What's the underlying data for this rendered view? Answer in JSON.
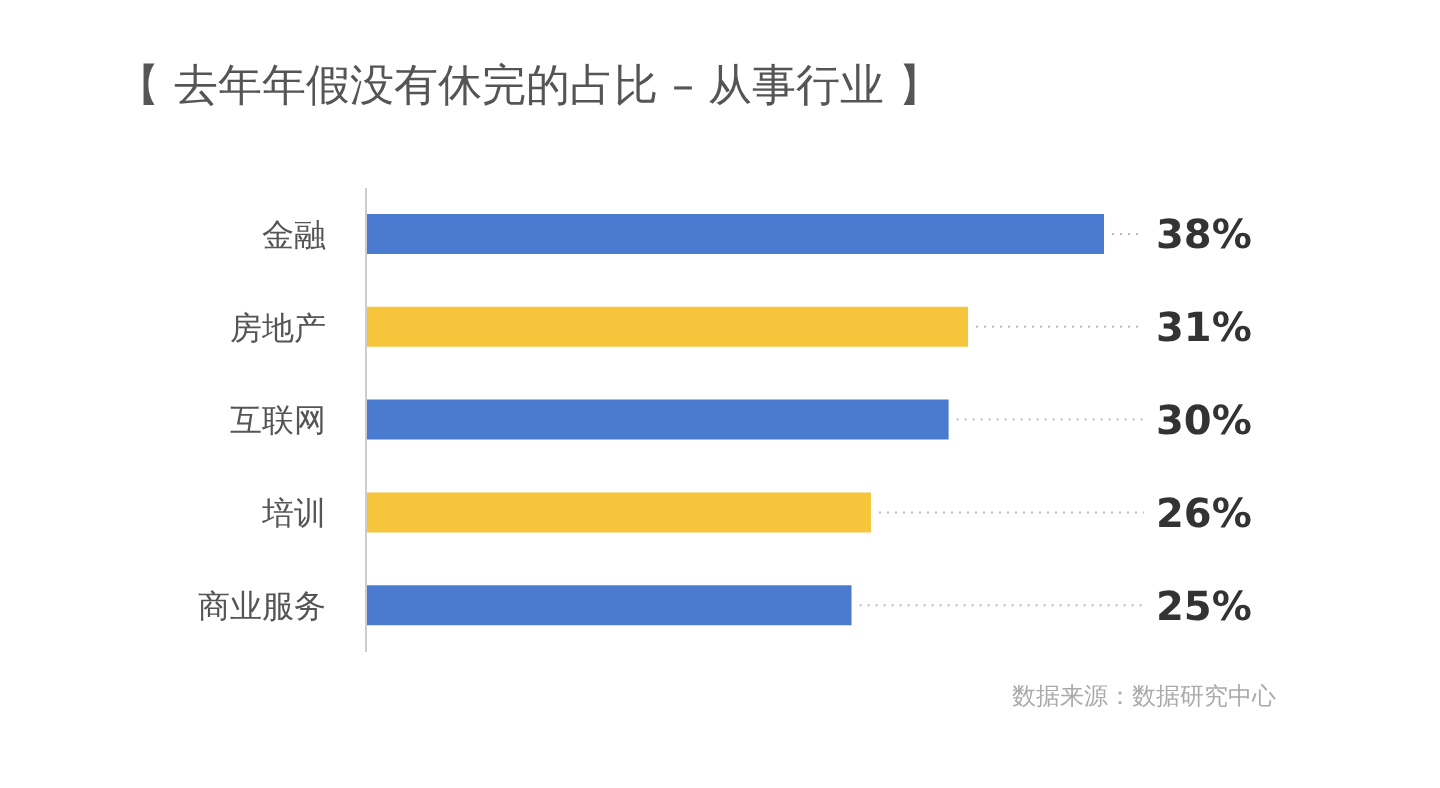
{
  "chart_data": {
    "type": "bar",
    "orientation": "horizontal",
    "title": "【 去年年假没有休完的占比 – 从事行业 】",
    "categories": [
      "金融",
      "房地产",
      "互联网",
      "培训",
      "商业服务"
    ],
    "values": [
      38,
      31,
      30,
      26,
      25
    ],
    "colors": [
      "#4a7bd0",
      "#f6c53c",
      "#4a7bd0",
      "#f6c53c",
      "#4a7bd0"
    ],
    "value_labels": [
      "38%",
      "31%",
      "30%",
      "26%",
      "25%"
    ],
    "annotations": [
      "数据来源：数据研究中心"
    ]
  }
}
